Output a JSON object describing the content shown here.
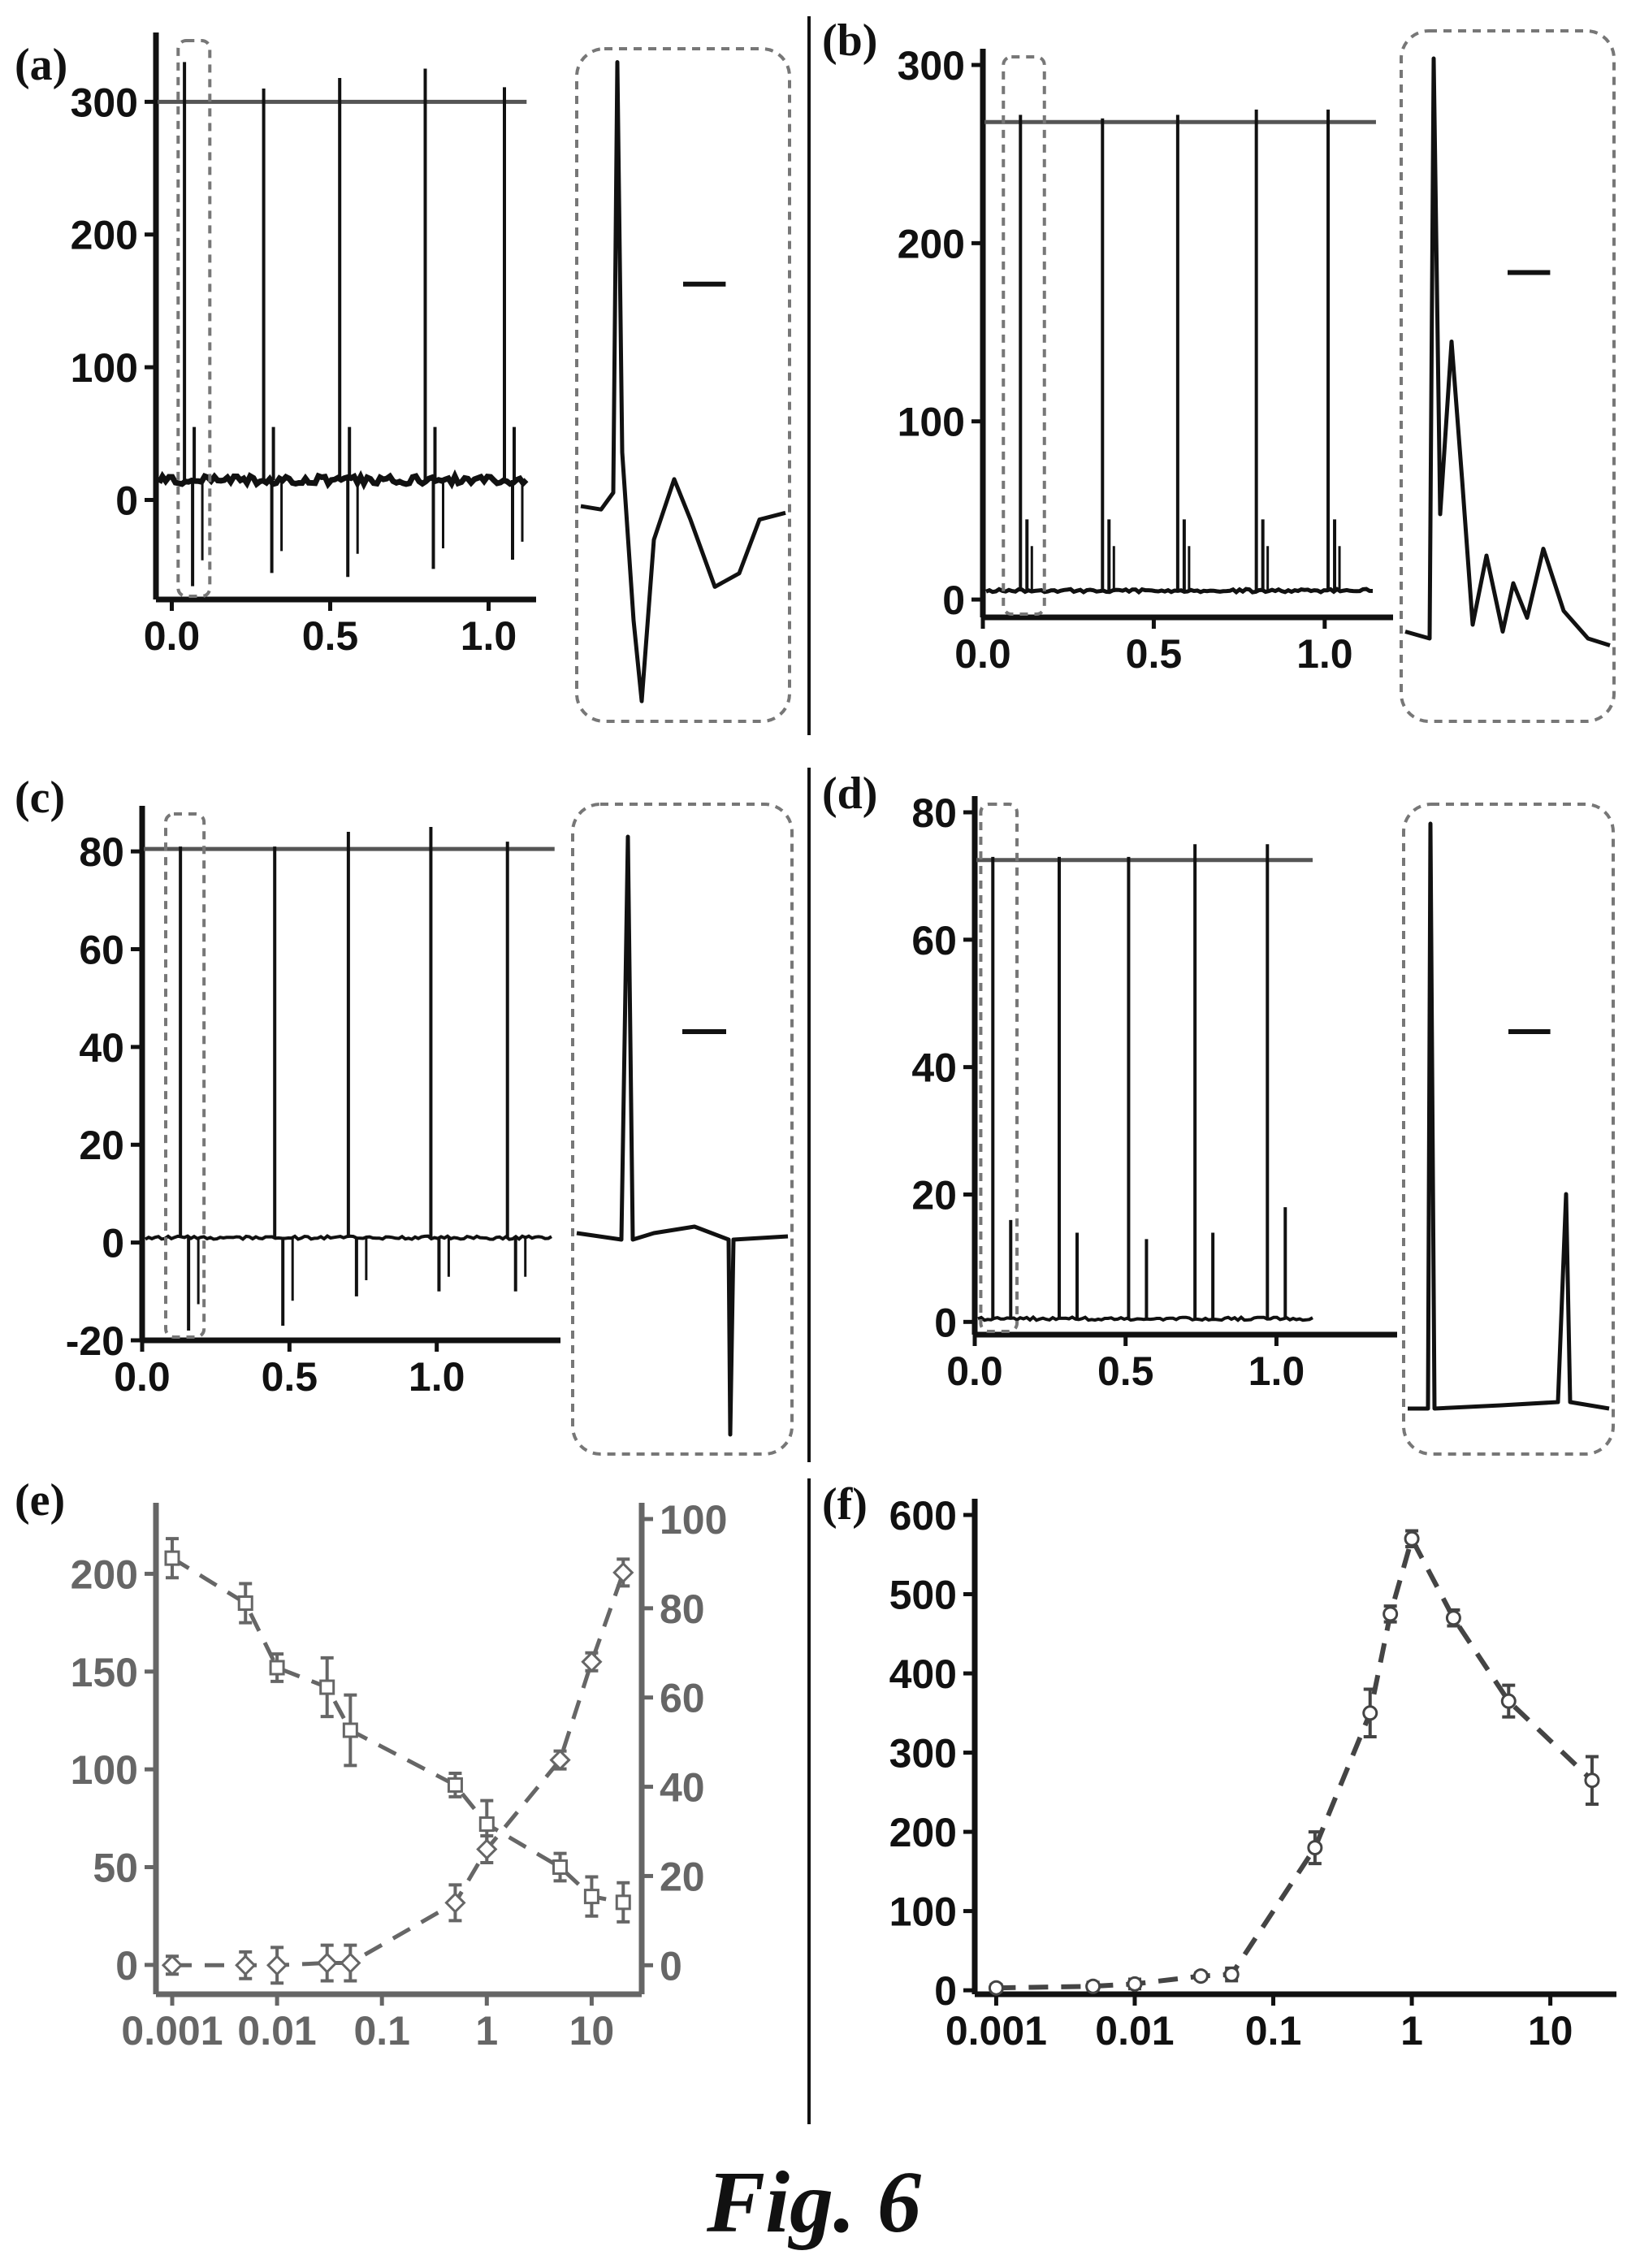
{
  "caption": "Fig. 6",
  "colors": {
    "ink": "#111111",
    "gray": "#666666",
    "frame": "#777777"
  },
  "panels": [
    {
      "id": "a",
      "label": "(a)",
      "chart_data": {
        "type": "line",
        "xlim": [
          -0.05,
          1.15
        ],
        "ylim": [
          -75,
          340
        ],
        "yticks": [
          0,
          100,
          200,
          300
        ],
        "ytick_labels": [
          "0",
          "100",
          "200",
          "300"
        ],
        "xticks": [
          0.0,
          0.5,
          1.0
        ],
        "xtick_labels": [
          "0.0",
          "0.5",
          "1.0"
        ],
        "baseline": 15,
        "hline": 300,
        "hline_xmax": 1.12,
        "spikes": [
          {
            "x": 0.04,
            "peak": 330,
            "trough": -65
          },
          {
            "x": 0.29,
            "peak": 310,
            "trough": -55
          },
          {
            "x": 0.53,
            "peak": 318,
            "trough": -58
          },
          {
            "x": 0.8,
            "peak": 325,
            "trough": -52
          },
          {
            "x": 1.05,
            "peak": 311,
            "trough": -45
          }
        ],
        "zoom_window": [
          0.02,
          0.12
        ]
      }
    },
    {
      "id": "b",
      "label": "(b)",
      "chart_data": {
        "type": "line",
        "xlim": [
          0,
          1.2
        ],
        "ylim": [
          -10,
          300
        ],
        "yticks": [
          0,
          100,
          200,
          300
        ],
        "ytick_labels": [
          "0",
          "100",
          "200",
          "300"
        ],
        "xticks": [
          0.0,
          0.5,
          1.0
        ],
        "xtick_labels": [
          "0.0",
          "0.5",
          "1.0"
        ],
        "baseline": 5,
        "hline": 268,
        "hline_xmax": 1.15,
        "spikes": [
          {
            "x": 0.11,
            "peak": 272
          },
          {
            "x": 0.35,
            "peak": 270
          },
          {
            "x": 0.57,
            "peak": 272
          },
          {
            "x": 0.8,
            "peak": 275
          },
          {
            "x": 1.01,
            "peak": 275
          }
        ],
        "zoom_window": [
          0.06,
          0.18
        ]
      }
    },
    {
      "id": "c",
      "label": "(c)",
      "chart_data": {
        "type": "line",
        "xlim": [
          0,
          1.42
        ],
        "ylim": [
          -20,
          86
        ],
        "yticks": [
          -20,
          0,
          20,
          40,
          60,
          80
        ],
        "ytick_labels": [
          "-20",
          "0",
          "20",
          "40",
          "60",
          "80"
        ],
        "xticks": [
          0.0,
          0.5,
          1.0
        ],
        "xtick_labels": [
          "0.0",
          "0.5",
          "1.0"
        ],
        "baseline": 1,
        "hline": 80.5,
        "hline_xmax": 1.4,
        "spikes": [
          {
            "x": 0.13,
            "peak": 81,
            "trough": -18
          },
          {
            "x": 0.45,
            "peak": 81,
            "trough": -17
          },
          {
            "x": 0.7,
            "peak": 84,
            "trough": -11
          },
          {
            "x": 0.98,
            "peak": 85,
            "trough": -10
          },
          {
            "x": 1.24,
            "peak": 82,
            "trough": -10
          }
        ],
        "zoom_window": [
          0.08,
          0.21
        ]
      }
    },
    {
      "id": "d",
      "label": "(d)",
      "chart_data": {
        "type": "line",
        "xlim": [
          0,
          1.4
        ],
        "ylim": [
          -2,
          80
        ],
        "yticks": [
          0,
          20,
          40,
          60,
          80
        ],
        "ytick_labels": [
          "0",
          "20",
          "40",
          "60",
          "80"
        ],
        "xticks": [
          0.0,
          0.5,
          1.0
        ],
        "xtick_labels": [
          "0.0",
          "0.5",
          "1.0"
        ],
        "baseline": 0.5,
        "hline": 72.5,
        "hline_xmax": 1.12,
        "spikes": [
          {
            "x": 0.06,
            "peak": 73,
            "sub": 16
          },
          {
            "x": 0.28,
            "peak": 73,
            "sub": 14
          },
          {
            "x": 0.51,
            "peak": 73,
            "sub": 13
          },
          {
            "x": 0.73,
            "peak": 75,
            "sub": 14
          },
          {
            "x": 0.97,
            "peak": 75,
            "sub": 18
          }
        ],
        "zoom_window": [
          0.02,
          0.14
        ]
      }
    },
    {
      "id": "e",
      "label": "(e)",
      "chart_data": {
        "type": "scatter",
        "x_scale": "log",
        "xlim": [
          0.0007,
          30
        ],
        "xticks": [
          0.001,
          0.01,
          0.1,
          1,
          10
        ],
        "xtick_labels": [
          "0.001",
          "0.01",
          "0.1",
          "1",
          "10"
        ],
        "ylim": [
          -15,
          228
        ],
        "yticks": [
          0,
          50,
          100,
          150,
          200
        ],
        "ytick_labels": [
          "0",
          "50",
          "100",
          "150",
          "200"
        ],
        "y2lim": [
          -6.5,
          100
        ],
        "y2ticks": [
          0,
          20,
          40,
          60,
          80,
          100
        ],
        "y2tick_labels": [
          "0",
          "20",
          "40",
          "60",
          "80",
          "100"
        ],
        "series": [
          {
            "marker": "square",
            "axis": "left",
            "x": [
              0.001,
              0.005,
              0.01,
              0.03,
              0.05,
              0.5,
              1,
              5,
              10,
              20
            ],
            "y": [
              208,
              185,
              152,
              142,
              120,
              92,
              72,
              50,
              35,
              32
            ],
            "err": [
              10,
              10,
              7,
              15,
              18,
              6,
              12,
              7,
              10,
              10
            ]
          },
          {
            "marker": "diamond",
            "axis": "right",
            "x": [
              0.001,
              0.005,
              0.01,
              0.03,
              0.05,
              0.5,
              1,
              5,
              10,
              20
            ],
            "y": [
              0,
              0,
              0,
              0.5,
              0.5,
              14,
              26,
              46,
              68,
              88
            ],
            "err": [
              2,
              3,
              4,
              4,
              4,
              4,
              3,
              2,
              2,
              3
            ]
          }
        ]
      }
    },
    {
      "id": "f",
      "label": "(f)",
      "chart_data": {
        "type": "scatter",
        "x_scale": "log",
        "xlim": [
          0.0007,
          30
        ],
        "xticks": [
          0.001,
          0.01,
          0.1,
          1,
          10
        ],
        "xtick_labels": [
          "0.001",
          "0.01",
          "0.1",
          "1",
          "10"
        ],
        "ylim": [
          -5,
          600
        ],
        "yticks": [
          0,
          100,
          200,
          300,
          400,
          500,
          600
        ],
        "ytick_labels": [
          "0",
          "100",
          "200",
          "300",
          "400",
          "500",
          "600"
        ],
        "series": [
          {
            "marker": "circle",
            "axis": "left",
            "x": [
              0.001,
              0.005,
              0.01,
              0.03,
              0.05,
              0.2,
              0.5,
              0.7,
              1,
              2,
              5,
              20
            ],
            "y": [
              3,
              5,
              8,
              18,
              20,
              180,
              350,
              475,
              570,
              470,
              365,
              265
            ],
            "err": [
              4,
              5,
              6,
              4,
              8,
              20,
              30,
              10,
              10,
              10,
              20,
              30
            ]
          }
        ]
      }
    }
  ]
}
